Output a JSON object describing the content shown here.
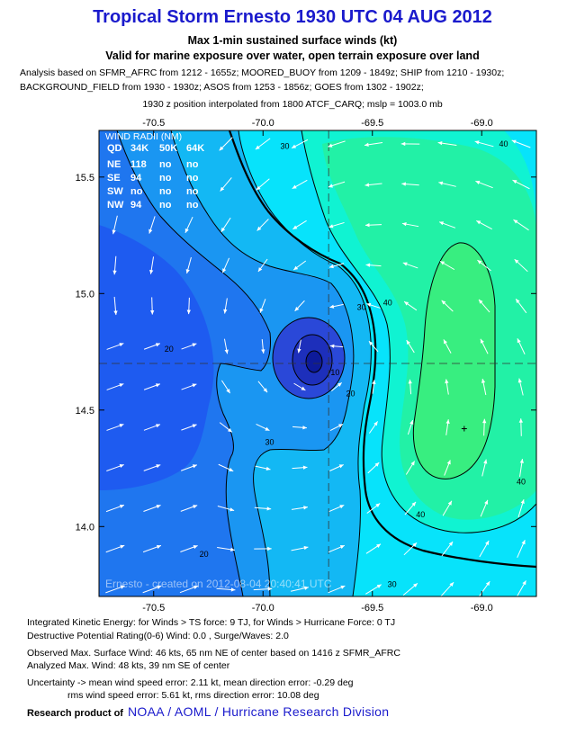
{
  "header": {
    "title": "Tropical Storm Ernesto 1930 UTC 04 AUG 2012",
    "subtitle1": "Max 1-min sustained surface winds (kt)",
    "subtitle2": "Valid for marine exposure over water, open terrain exposure over land",
    "analysis_line1": "Analysis based on SFMR_AFRC from 1212 - 1655z; MOORED_BUOY from 1209 - 1849z; SHIP from 1210 - 1930z;",
    "analysis_line2": "BACKGROUND_FIELD from 1930 - 1930z; ASOS from 1253 - 1856z; GOES from 1302 - 1902z;",
    "position_line": "1930 z position interpolated from 1800 ATCF_CARQ; mslp = 1003.0 mb"
  },
  "wind_radii": {
    "title": "WIND RADII (NM)",
    "columns": [
      "QD",
      "34K",
      "50K",
      "64K"
    ],
    "rows": [
      [
        "NE",
        "118",
        "no",
        "no"
      ],
      [
        "SE",
        "94",
        "no",
        "no"
      ],
      [
        "SW",
        "no",
        "no",
        "no"
      ],
      [
        "NW",
        "94",
        "no",
        "no"
      ]
    ]
  },
  "watermark": "Ernesto - created on 2012-08-04 20:40:41 UTC",
  "chart_data": {
    "type": "heatmap",
    "subtype": "filled-contour wind field",
    "x_ticks": [
      -70.5,
      -70.0,
      -69.5,
      -69.0
    ],
    "x_tick_labels": [
      "-70.5",
      "-70.0",
      "-69.5",
      "-69.0"
    ],
    "y_ticks": [
      15.5,
      15.0,
      14.5,
      14.0
    ],
    "y_tick_labels": [
      "15.5",
      "15.0",
      "14.5",
      "14.0"
    ],
    "xlim": [
      -70.75,
      -68.75
    ],
    "ylim": [
      13.7,
      15.7
    ],
    "center": {
      "lon": -69.7,
      "lat": 14.7
    },
    "max_wind_marker": {
      "lon": -69.08,
      "lat": 14.42
    },
    "contour_labels": [
      {
        "text": "40",
        "lon": -68.9,
        "lat": 15.63
      },
      {
        "text": "30",
        "lon": -69.9,
        "lat": 15.62
      },
      {
        "text": "40",
        "lon": -69.43,
        "lat": 14.95
      },
      {
        "text": "30",
        "lon": -69.55,
        "lat": 14.93
      },
      {
        "text": "20",
        "lon": -70.43,
        "lat": 14.75
      },
      {
        "text": "10",
        "lon": -69.67,
        "lat": 14.65
      },
      {
        "text": "20",
        "lon": -69.6,
        "lat": 14.56
      },
      {
        "text": "30",
        "lon": -69.97,
        "lat": 14.35
      },
      {
        "text": "40",
        "lon": -69.28,
        "lat": 14.04
      },
      {
        "text": "40",
        "lon": -68.82,
        "lat": 14.18
      },
      {
        "text": "20",
        "lon": -70.27,
        "lat": 13.87
      },
      {
        "text": "30",
        "lon": -69.41,
        "lat": 13.74
      }
    ],
    "colors": {
      "w0": "#1e5bf0",
      "w1": "#1f76ef",
      "w2": "#1a96f2",
      "w3": "#13b8f4",
      "w4": "#07e3fb",
      "w5": "#10f3d2",
      "w6": "#22f1a6",
      "w7": "#38ee80",
      "core1": "#2a48d8",
      "core2": "#1d2fbb",
      "core3": "#0d1a9a"
    }
  },
  "footer": {
    "ike": "Integrated Kinetic Energy: for Winds > TS force: 9 TJ, for Winds > Hurricane Force: 0 TJ",
    "dpr": "Destructive Potential Rating(0-6)   Wind: 0.0 , Surge/Waves: 2.0",
    "obs": "Observed Max. Surface Wind: 46 kts, 65 nm NE of center based on 1416 z SFMR_AFRC",
    "analyzed": "Analyzed Max. Wind: 48 kts, 39 nm  SE of center",
    "uncert1": "Uncertainty -> mean wind speed error: 2.11 kt, mean direction error:  -0.29 deg",
    "uncert2": "rms wind speed error: 5.61 kt, rms direction error: 10.08 deg",
    "research_label": "Research product of",
    "research_link": "NOAA  /  AOML  /  Hurricane Research Division"
  }
}
